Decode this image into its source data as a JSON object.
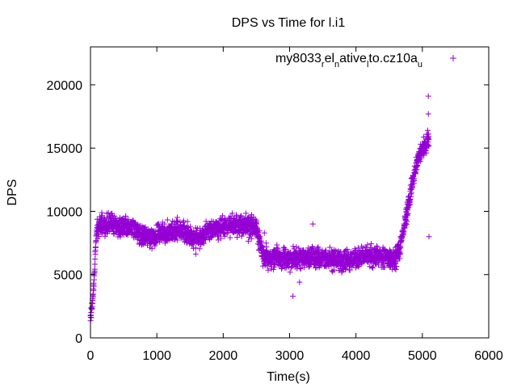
{
  "chart_data": {
    "type": "scatter",
    "title": "DPS vs Time for l.i1",
    "xlabel": "Time(s)",
    "ylabel": "DPS",
    "xlim": [
      0,
      6000
    ],
    "ylim": [
      0,
      23000
    ],
    "xticks": [
      0,
      1000,
      2000,
      3000,
      4000,
      5000,
      6000
    ],
    "yticks": [
      0,
      5000,
      10000,
      15000,
      20000
    ],
    "legend_position": "top-right",
    "grid": false,
    "marker": "+",
    "series_color": "#9400D3",
    "series": [
      {
        "legend_parts": [
          "my8033",
          "r",
          "el",
          "n",
          "ative",
          "l",
          "to.cz10a",
          "u"
        ],
        "trend": [
          [
            0,
            1500
          ],
          [
            20,
            2300
          ],
          [
            40,
            3500
          ],
          [
            60,
            5000
          ],
          [
            80,
            7500
          ],
          [
            100,
            8800
          ],
          [
            150,
            9000
          ],
          [
            200,
            8800
          ],
          [
            300,
            9000
          ],
          [
            400,
            8800
          ],
          [
            500,
            8600
          ],
          [
            600,
            8900
          ],
          [
            700,
            8400
          ],
          [
            800,
            8100
          ],
          [
            900,
            7900
          ],
          [
            1000,
            8100
          ],
          [
            1100,
            8400
          ],
          [
            1200,
            8300
          ],
          [
            1300,
            8600
          ],
          [
            1400,
            8300
          ],
          [
            1500,
            8000
          ],
          [
            1600,
            7800
          ],
          [
            1700,
            8100
          ],
          [
            1800,
            8500
          ],
          [
            1900,
            8700
          ],
          [
            2000,
            8700
          ],
          [
            2100,
            8900
          ],
          [
            2200,
            8900
          ],
          [
            2300,
            8800
          ],
          [
            2400,
            8800
          ],
          [
            2500,
            8700
          ],
          [
            2550,
            7500
          ],
          [
            2600,
            6500
          ],
          [
            2700,
            6200
          ],
          [
            2800,
            6300
          ],
          [
            3000,
            6200
          ],
          [
            3200,
            6300
          ],
          [
            3400,
            6400
          ],
          [
            3600,
            6200
          ],
          [
            3800,
            6100
          ],
          [
            4000,
            6300
          ],
          [
            4200,
            6500
          ],
          [
            4400,
            6400
          ],
          [
            4600,
            6200
          ],
          [
            4650,
            6800
          ],
          [
            4700,
            8200
          ],
          [
            4750,
            9500
          ],
          [
            4800,
            10800
          ],
          [
            4850,
            12200
          ],
          [
            4900,
            13500
          ],
          [
            4950,
            14500
          ],
          [
            5000,
            15000
          ],
          [
            5050,
            15300
          ],
          [
            5100,
            15700
          ]
        ],
        "outliers": [
          [
            5090,
            19100
          ],
          [
            5090,
            17700
          ],
          [
            5080,
            16400
          ],
          [
            3050,
            3300
          ],
          [
            3350,
            9000
          ],
          [
            5100,
            8000
          ],
          [
            3150,
            4400
          ],
          [
            2620,
            8300
          ]
        ]
      }
    ]
  }
}
